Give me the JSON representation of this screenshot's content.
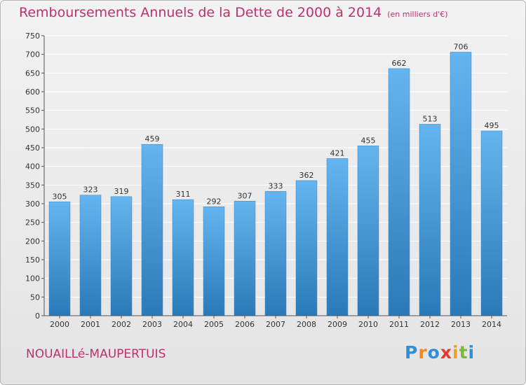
{
  "chart_data": {
    "type": "bar",
    "title": "Remboursements Annuels de la Dette de 2000 à 2014",
    "subtitle": "(en milliers d'€)",
    "categories": [
      "2000",
      "2001",
      "2002",
      "2003",
      "2004",
      "2005",
      "2006",
      "2007",
      "2008",
      "2009",
      "2010",
      "2011",
      "2012",
      "2013",
      "2014"
    ],
    "values": [
      305,
      323,
      319,
      459,
      311,
      292,
      307,
      333,
      362,
      421,
      455,
      662,
      513,
      706,
      495
    ],
    "data_labels": [
      "305",
      "323",
      "319",
      "459",
      "311",
      "292",
      "307",
      "333",
      "362",
      "421",
      "455",
      "662",
      "513",
      "706",
      "495"
    ],
    "yticks": [
      0,
      50,
      100,
      150,
      200,
      250,
      300,
      350,
      400,
      450,
      500,
      550,
      600,
      650,
      700,
      750
    ],
    "ylim": [
      0,
      750
    ],
    "grid": true,
    "legend": "none",
    "bar_color_top": "#64b5ef",
    "bar_color_bottom": "#2a79b8"
  },
  "footer": {
    "commune": "NOUAILLé-MAUPERTUIS",
    "logo_letters": [
      "P",
      "r",
      "o",
      "x",
      "i",
      "t",
      "i"
    ],
    "logo_colors": [
      "#2f8fd8",
      "#f08a1c",
      "#2f8fd8",
      "#e23a2c",
      "#f0a020",
      "#7cb83a",
      "#2f8fd8"
    ]
  },
  "colors": {
    "accent": "#c0306a",
    "grid": "#ffffff",
    "axis": "#555555"
  }
}
